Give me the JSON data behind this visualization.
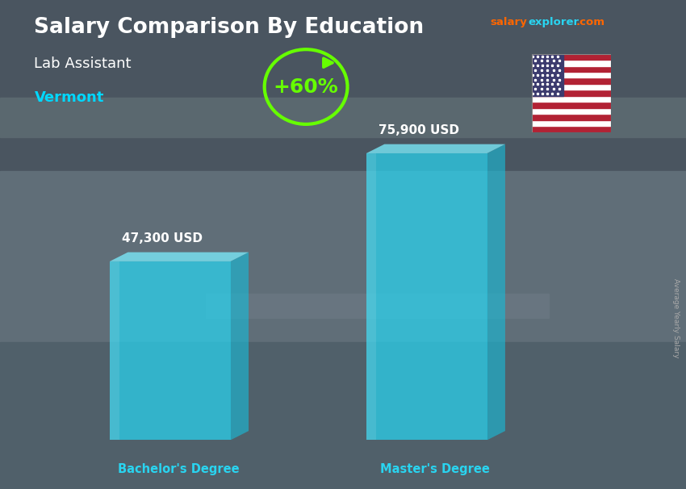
{
  "title": "Salary Comparison By Education",
  "subtitle": "Lab Assistant",
  "location": "Vermont",
  "categories": [
    "Bachelor's Degree",
    "Master's Degree"
  ],
  "values": [
    47300,
    75900
  ],
  "value_labels": [
    "47,300 USD",
    "75,900 USD"
  ],
  "pct_change": "+60%",
  "bar_color_face": "#29d4f0",
  "bar_color_side": "#1ab8d4",
  "bar_color_top": "#7ae8f8",
  "bar_alpha": 0.72,
  "background_color": "#5a6a74",
  "title_color": "#ffffff",
  "subtitle_color": "#ffffff",
  "location_color": "#00d8ff",
  "label_color": "#ffffff",
  "axis_label_color": "#29d4f0",
  "salary_text_color": "#ff6600",
  "explorer_text_color": "#29d4f0",
  "com_text_color": "#ff6600",
  "pct_color": "#66ff00",
  "arrow_color": "#66ff00",
  "side_text": "Average Yearly Salary",
  "side_text_color": "#aaaaaa",
  "bar_positions": [
    1.8,
    5.2
  ],
  "bar_width": 1.6,
  "xlim": [
    0,
    8
  ],
  "ylim": [
    0,
    110000
  ]
}
